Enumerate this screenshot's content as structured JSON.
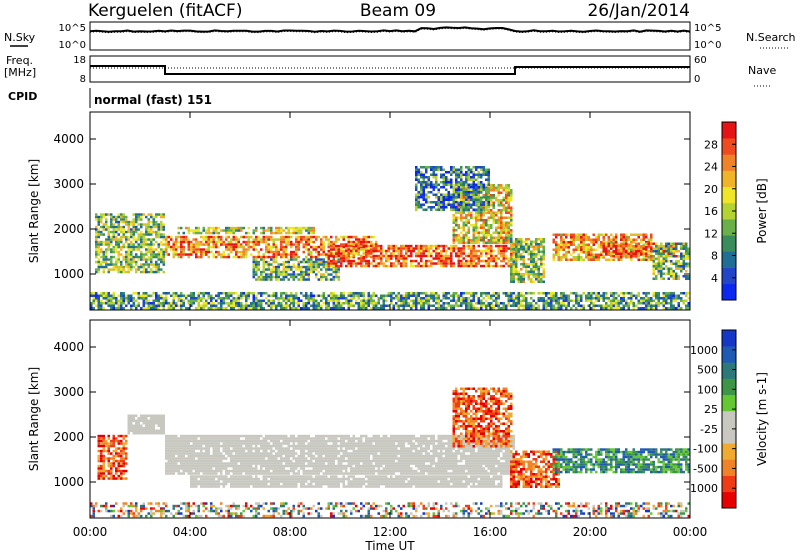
{
  "header": {
    "station": "Kerguelen (fitACF)",
    "beam": "Beam 09",
    "date": "26/Jan/2014"
  },
  "noise_panel": {
    "left_label": "N.Sky",
    "right_label": "N.Search",
    "left_ticks": [
      "10^5",
      "10^0"
    ],
    "right_ticks": [
      "10^5",
      "10^0"
    ]
  },
  "freq_panel": {
    "left_label_1": "Freq.",
    "left_label_2": "[MHz]",
    "right_label": "Nave",
    "left_ticks": [
      "18",
      "8"
    ],
    "right_ticks": [
      "60",
      "0"
    ]
  },
  "cpid": {
    "label": "CPID",
    "value": "normal (fast) 151"
  },
  "colors": {
    "power_scale": [
      "#0a28f0",
      "#2346c8",
      "#1f6e96",
      "#3a8c5a",
      "#6ab04a",
      "#b4d232",
      "#f0e628",
      "#f0b428",
      "#f08228",
      "#f04b1e",
      "#e61414"
    ],
    "velocity_scale": [
      "#e60000",
      "#f03c14",
      "#f08228",
      "#f0aa32",
      "#c8c8c0",
      "#c8c8c0",
      "#64c832",
      "#3c9646",
      "#2d7878",
      "#1e5ab4",
      "#1437c8"
    ],
    "ground_scatter": "#c8c8c0"
  },
  "chart_data": [
    {
      "type": "heatmap",
      "name": "power",
      "xlabel": "",
      "ylabel": "Slant Range [km]",
      "y_ticks": [
        "1000",
        "2000",
        "3000",
        "4000"
      ],
      "ylim": [
        200,
        4600
      ],
      "xlim_hours": [
        0,
        24
      ],
      "colorbar_label": "Power [dB]",
      "colorbar_ticks": [
        "4",
        "8",
        "12",
        "16",
        "20",
        "24",
        "28"
      ],
      "clim": [
        0,
        32
      ],
      "regions": [
        {
          "t": [
            0.2,
            3.0
          ],
          "r": [
            1050,
            2350
          ],
          "level": 0.45
        },
        {
          "t": [
            3.0,
            11.5
          ],
          "r": [
            1400,
            1850
          ],
          "level": 0.75
        },
        {
          "t": [
            3.5,
            9.0
          ],
          "r": [
            1900,
            2050
          ],
          "level": 0.5
        },
        {
          "t": [
            6.5,
            10.0
          ],
          "r": [
            900,
            1350
          ],
          "level": 0.4
        },
        {
          "t": [
            9.5,
            17.0
          ],
          "r": [
            1200,
            1650
          ],
          "level": 0.85
        },
        {
          "t": [
            14.5,
            16.8
          ],
          "r": [
            1700,
            3000
          ],
          "level": 0.6
        },
        {
          "t": [
            13.0,
            16.0
          ],
          "r": [
            2400,
            3400
          ],
          "level": 0.25
        },
        {
          "t": [
            16.8,
            18.2
          ],
          "r": [
            800,
            1800
          ],
          "level": 0.5
        },
        {
          "t": [
            18.5,
            22.5
          ],
          "r": [
            1300,
            1900
          ],
          "level": 0.7
        },
        {
          "t": [
            20.5,
            23.5
          ],
          "r": [
            1400,
            1700
          ],
          "level": 0.9
        },
        {
          "t": [
            22.5,
            24.0
          ],
          "r": [
            900,
            1700
          ],
          "level": 0.4
        },
        {
          "t": [
            0.0,
            24.0
          ],
          "r": [
            250,
            600
          ],
          "level": 0.35
        }
      ]
    },
    {
      "type": "heatmap",
      "name": "velocity",
      "xlabel": "Time UT",
      "x_ticks": [
        "00:00",
        "04:00",
        "08:00",
        "12:00",
        "16:00",
        "20:00",
        "00:00"
      ],
      "ylabel": "Slant Range [km]",
      "y_ticks": [
        "1000",
        "2000",
        "3000",
        "4000"
      ],
      "ylim": [
        200,
        4600
      ],
      "xlim_hours": [
        0,
        24
      ],
      "colorbar_label": "Velocity [m s-1]",
      "colorbar_ticks": [
        "1000",
        "500",
        "100",
        "25",
        "-25",
        "-100",
        "-500",
        "-1000"
      ],
      "regions": [
        {
          "t": [
            1.5,
            3.0
          ],
          "r": [
            2100,
            2500
          ],
          "kind": "ground"
        },
        {
          "t": [
            3.0,
            17.0
          ],
          "r": [
            1200,
            2050
          ],
          "kind": "ground"
        },
        {
          "t": [
            4.0,
            16.5
          ],
          "r": [
            900,
            1150
          ],
          "kind": "ground"
        },
        {
          "t": [
            0.3,
            1.5
          ],
          "r": [
            1100,
            2050
          ],
          "kind": "neg"
        },
        {
          "t": [
            14.5,
            16.8
          ],
          "r": [
            1800,
            3100
          ],
          "kind": "neg"
        },
        {
          "t": [
            16.8,
            18.8
          ],
          "r": [
            900,
            1700
          ],
          "kind": "neg"
        },
        {
          "t": [
            18.5,
            24.0
          ],
          "r": [
            1200,
            1750
          ],
          "kind": "pos"
        },
        {
          "t": [
            0.0,
            24.0
          ],
          "r": [
            250,
            550
          ],
          "kind": "mixed"
        }
      ]
    }
  ]
}
